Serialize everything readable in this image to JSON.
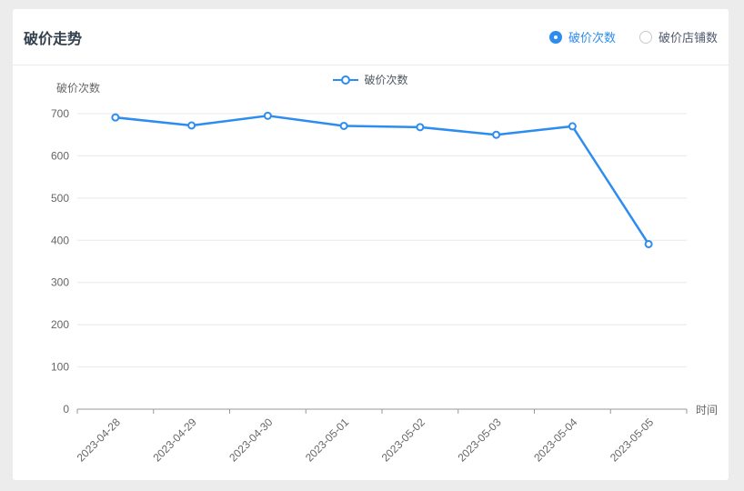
{
  "card": {
    "title": "破价走势",
    "toggle": {
      "options": [
        {
          "label": "破价次数",
          "selected": true
        },
        {
          "label": "破价店铺数",
          "selected": false
        }
      ]
    }
  },
  "chart_data": {
    "type": "line",
    "legend": [
      "破价次数"
    ],
    "series": [
      {
        "name": "破价次数",
        "values": [
          691,
          672,
          695,
          671,
          668,
          650,
          670,
          391
        ]
      }
    ],
    "categories": [
      "2023-04-28",
      "2023-04-29",
      "2023-04-30",
      "2023-05-01",
      "2023-05-02",
      "2023-05-03",
      "2023-05-04",
      "2023-05-05"
    ],
    "xlabel": "时间",
    "ylabel": "破价次数",
    "ylim": [
      0,
      700
    ],
    "ytick_step": 100,
    "grid": true,
    "legend_position": "top-center",
    "marker": "hollow-circle"
  },
  "colors": {
    "line": "#2d8cf0",
    "accent": "#2d8cf0",
    "grid_line": "#e8e8e8",
    "axis_line": "#999999",
    "axis_text": "#666666",
    "title_text": "#33404e"
  }
}
